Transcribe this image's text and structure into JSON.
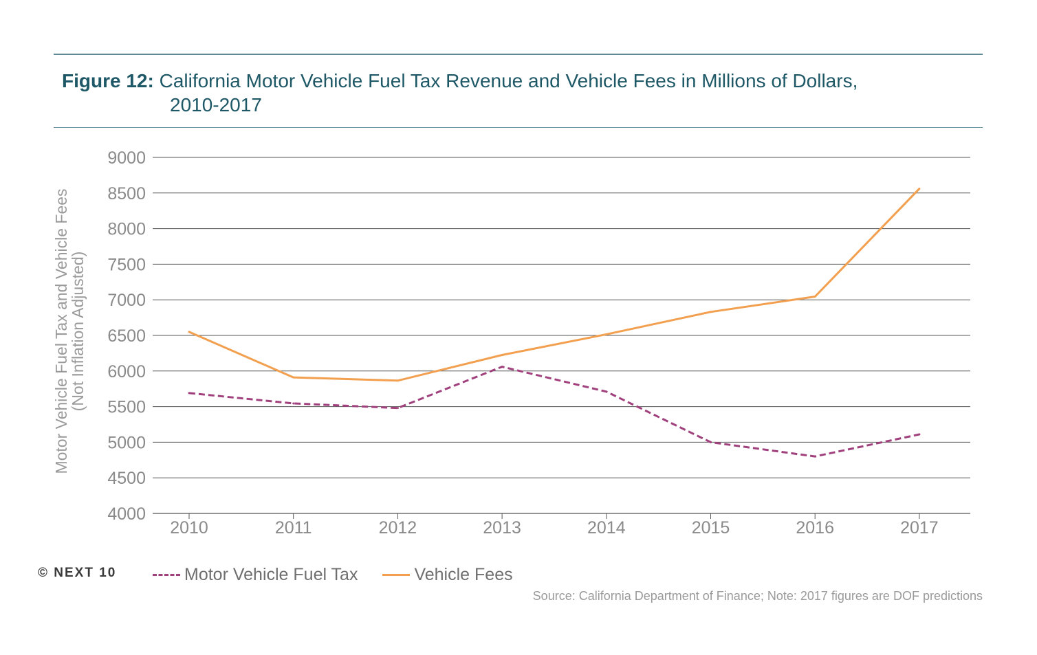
{
  "title": {
    "figure_label": "Figure 12:",
    "text_line1": "California Motor Vehicle Fuel Tax Revenue and Vehicle Fees in Millions of Dollars,",
    "text_line2": "2010-2017"
  },
  "copyright": "© NEXT 10",
  "source": "Source: California Department of Finance; Note: 2017 figures are DOF predictions",
  "colors": {
    "fuel_tax": "#a0407d",
    "vehicle_fees": "#f2a04f",
    "grid": "#555555",
    "axis_text": "#8a8a8a"
  },
  "chart_data": {
    "type": "line",
    "title": "",
    "xlabel": "",
    "ylabel_line1": "Motor Vehicle Fuel Tax and  Vehicle Fees",
    "ylabel_line2": "(Not Inflation Adjusted)",
    "categories": [
      "2010",
      "2011",
      "2012",
      "2013",
      "2014",
      "2015",
      "2016",
      "2017"
    ],
    "ylim": [
      4000,
      9000
    ],
    "yticks": [
      4000,
      4500,
      5000,
      5500,
      6000,
      6500,
      7000,
      7500,
      8000,
      8500,
      9000
    ],
    "grid": true,
    "legend_position": "bottom",
    "series": [
      {
        "name": "Motor Vehicle Fuel Tax",
        "style": "dashed",
        "values": [
          5690,
          5545,
          5480,
          6060,
          5710,
          5000,
          4800,
          5110
        ]
      },
      {
        "name": "Vehicle Fees",
        "style": "solid",
        "values": [
          6550,
          5910,
          5865,
          6225,
          6515,
          6830,
          7045,
          8560
        ]
      }
    ]
  }
}
